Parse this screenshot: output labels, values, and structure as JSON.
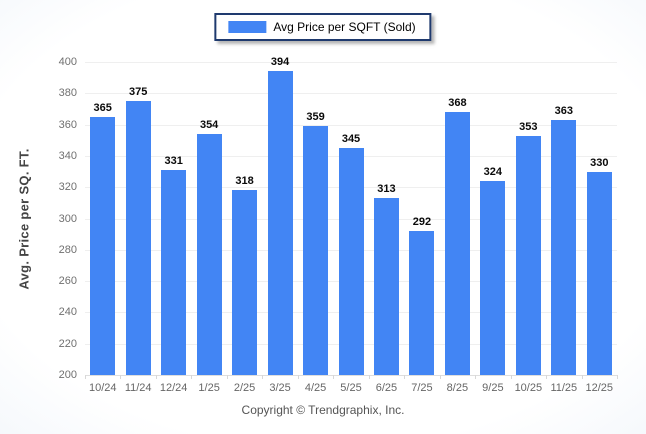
{
  "legend": {
    "label": "Avg Price per SQFT (Sold)",
    "swatch_color": "#4285f4"
  },
  "footer": {
    "copyright": "Copyright © Trendgraphix, Inc."
  },
  "colors": {
    "bar": "#4285f4",
    "legend_border": "#1f3a6e",
    "gridline": "#efefef",
    "tick_text": "#707070",
    "value_label": "#0a0a0a",
    "background_edge": "#d8e3f1"
  },
  "chart_data": {
    "type": "bar",
    "title": "",
    "xlabel": "",
    "ylabel": "Avg. Price per SQ. FT.",
    "legend_position": "top-center",
    "grid": true,
    "ylim": [
      200,
      400
    ],
    "ytick_step": 20,
    "categories": [
      "10/24",
      "11/24",
      "12/24",
      "1/25",
      "2/25",
      "3/25",
      "4/25",
      "5/25",
      "6/25",
      "7/25",
      "8/25",
      "9/25",
      "10/25",
      "11/25",
      "12/25"
    ],
    "series": [
      {
        "name": "Avg Price per SQFT (Sold)",
        "color": "#4285f4",
        "values": [
          365,
          375,
          331,
          354,
          318,
          394,
          359,
          345,
          313,
          292,
          368,
          324,
          353,
          363,
          330
        ]
      }
    ]
  }
}
